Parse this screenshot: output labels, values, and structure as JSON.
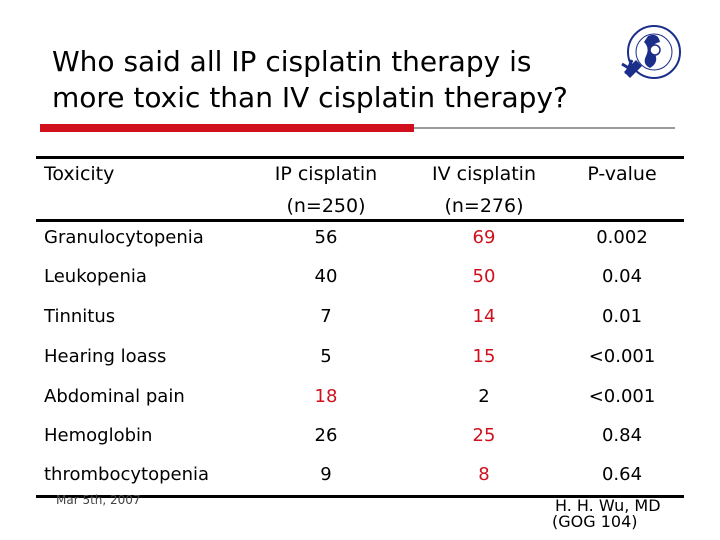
{
  "title": {
    "line1": "Who said all IP cisplatin therapy is",
    "line2": "more toxic than IV cisplatin therapy?"
  },
  "logo": {
    "icon": "institution-seal-icon"
  },
  "table": {
    "headers": {
      "toxicity": "Toxicity",
      "ip": "IP cisplatin",
      "ip_n": "(n=250)",
      "iv": "IV cisplatin",
      "iv_n": "(n=276)",
      "p": "P-value"
    },
    "rows": [
      {
        "name": "Granulocytopenia",
        "ip": "56",
        "iv": "69",
        "p": "0.002"
      },
      {
        "name": "Leukopenia",
        "ip": "40",
        "iv": "50",
        "p": "0.04"
      },
      {
        "name": "Tinnitus",
        "ip": "7",
        "iv": "14",
        "p": "0.01"
      },
      {
        "name": "Hearing loass",
        "ip": "5",
        "iv": "15",
        "p": "<0.001"
      },
      {
        "name": "Abdominal pain",
        "ip": "18",
        "iv": "2",
        "p": "<0.001"
      },
      {
        "name": "Hemoglobin",
        "ip": "26",
        "iv": "25",
        "p": "0.84"
      },
      {
        "name": "thrombocytopenia",
        "ip": "9",
        "iv": "8",
        "p": "0.64"
      }
    ],
    "colors": {
      "highlight": "#d0101c",
      "normal": "#000000"
    }
  },
  "footer": {
    "date": "Mar 5th, 2007",
    "author": "H. H. Wu, MD",
    "source": "(GOG 104)"
  }
}
